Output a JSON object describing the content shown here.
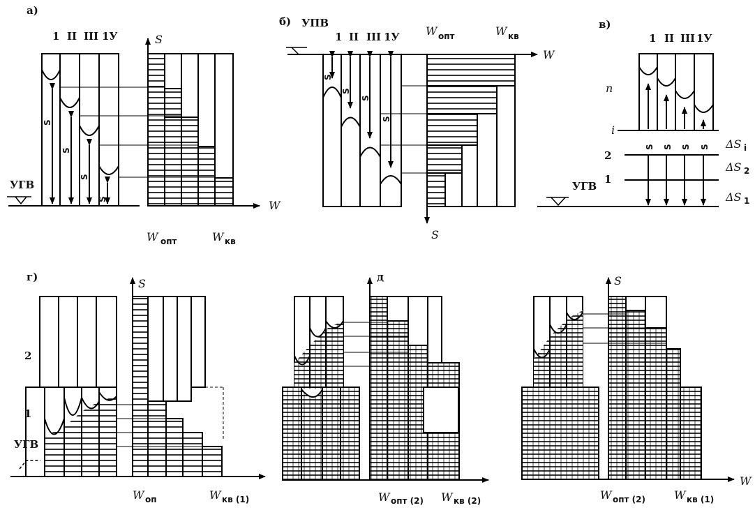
{
  "panel_a": {
    "letter": "а)",
    "zones": [
      "1",
      "II",
      "III",
      "1У"
    ],
    "s_labels": [
      "S",
      "S",
      "S",
      "S"
    ],
    "s_sup": [
      "I",
      "II",
      "III",
      "1У"
    ],
    "ugv": "УГВ",
    "axis_s": "S",
    "axis_w": "W",
    "w_opt": "W",
    "w_opt_sub": "опт",
    "w_kv": "W",
    "w_kv_sub": "кв"
  },
  "panel_b": {
    "letter": "б)",
    "zones": [
      "1",
      "II",
      "III",
      "1У"
    ],
    "s_sup": [
      "I",
      "II",
      "III",
      "1У"
    ],
    "s_labels": [
      "S",
      "S",
      "S",
      "S"
    ],
    "upv": "УПВ",
    "axis_w": "W",
    "axis_s": "S",
    "w_opt": "W",
    "w_opt_sub": "опт",
    "w_kv": "W",
    "w_kv_sub": "кв"
  },
  "panel_v": {
    "letter": "в)",
    "zones": [
      "1",
      "II",
      "III",
      "1У"
    ],
    "layer_labels": [
      "n",
      "i",
      "2",
      "1"
    ],
    "deltas": [
      "ΔS",
      "ΔS",
      "ΔS"
    ],
    "delta_subs": [
      "i",
      "2",
      "1"
    ],
    "s_labels": [
      "S",
      "S",
      "S",
      "S"
    ],
    "s_sup": [
      "I",
      "II",
      "III",
      "1У"
    ],
    "ugv": "УГВ"
  },
  "panel_g": {
    "letter": "г)",
    "layer_labels": [
      "2",
      "1"
    ],
    "ugv": "УГВ",
    "axis_s": "S",
    "w_op": "W",
    "w_op_sub": "оп",
    "w_kv": "W",
    "w_kv_sub": "кв (1)"
  },
  "panel_d": {
    "letter": "д",
    "w_opt": "W",
    "w_opt_sub": "опт (2)",
    "w_kv": "W",
    "w_kv_sub": "кв (2)"
  },
  "panel_e": {
    "axis_s": "S",
    "axis_w": "W",
    "w_opt": "W",
    "w_opt_sub": "опт (2)",
    "w_kv": "W",
    "w_kv_sub": "кв (1)"
  }
}
